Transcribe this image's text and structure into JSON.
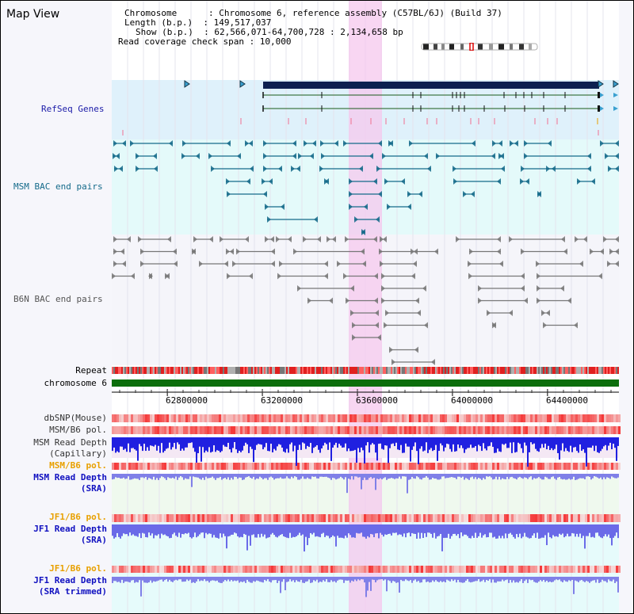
{
  "page": {
    "title": "Map View"
  },
  "header": {
    "chromosome_line": "Chromosome      : Chromosome 6, reference assembly (C57BL/6J) (Build 37)",
    "length_line": "Length (b.p.)  : 149,517,037",
    "show_line": "Show (b.p.)  : 62,566,071-64,700,728 : 2,134,658 bp",
    "coverage_line": "Read coverage check span : 10,000"
  },
  "tracks": {
    "refseq": {
      "label": "RefSeq Genes",
      "color": "#1b1ba8"
    },
    "msm_bac": {
      "label": "MSM BAC end pairs",
      "color": "#146a8a"
    },
    "b6n_bac": {
      "label": "B6N BAC end pairs",
      "color": "#555555"
    },
    "repeat": {
      "label": "Repeat"
    },
    "chromosome": {
      "label": "chromosome 6",
      "color": "#0c6e0c"
    },
    "dbsnp": {
      "label": "dbSNP(Mouse)"
    },
    "msm_b6_pol_1": {
      "label": "MSM/B6 pol."
    },
    "msm_read_depth_cap": {
      "label_line1": "MSM Read Depth",
      "label_line2": "(Capillary)"
    },
    "msm_b6_pol_2": {
      "label": "MSM/B6 pol.",
      "color": "#e8a000"
    },
    "msm_read_depth_sra": {
      "label_line1": "MSM Read Depth",
      "label_line2": "(SRA)",
      "color": "#1010c0"
    },
    "jf1_b6_pol_1": {
      "label": "JF1/B6 pol.",
      "color": "#e8a000"
    },
    "jf1_read_depth_sra": {
      "label_line1": "JF1 Read Depth",
      "label_line2": "(SRA)",
      "color": "#1010c0"
    },
    "jf1_b6_pol_2": {
      "label": "JF1/B6 pol.",
      "color": "#e8a000"
    },
    "jf1_read_depth_trim": {
      "label_line1": "JF1 Read Depth",
      "label_line2": "(SRA trimmed)",
      "color": "#1010c0"
    }
  },
  "axis": {
    "ticks": [
      "62800000",
      "63200000",
      "63600000",
      "64000000",
      "64400000"
    ],
    "tick_values": [
      62800000,
      63200000,
      63600000,
      64000000,
      64400000
    ],
    "range": [
      62566071,
      64700728
    ]
  },
  "highlight": {
    "from": 63564000,
    "to": 63700000,
    "color": "#f5c8ee"
  }
}
